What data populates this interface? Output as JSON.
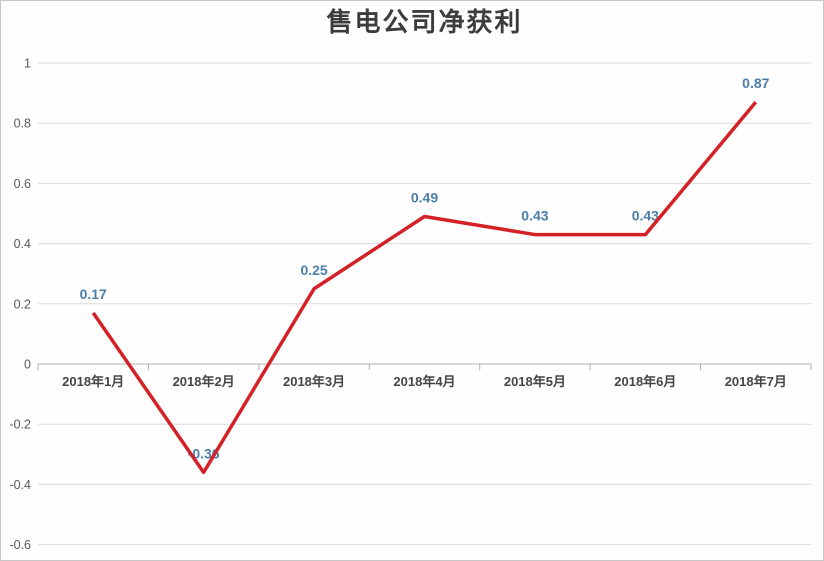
{
  "page": {
    "background": "#fefefe",
    "frame_border": "#c6c6c6"
  },
  "chart_data": {
    "type": "line",
    "title": "售电公司净获利",
    "categories": [
      "2018年1月",
      "2018年2月",
      "2018年3月",
      "2018年4月",
      "2018年5月",
      "2018年6月",
      "2018年7月"
    ],
    "values": [
      0.17,
      -0.36,
      0.25,
      0.49,
      0.43,
      0.43,
      0.87
    ],
    "data_labels": [
      "0.17",
      "-0.36",
      "0.25",
      "0.49",
      "0.43",
      "0.43",
      "0.87"
    ],
    "xlabel": "",
    "ylabel": "",
    "ylim": [
      -0.6,
      1
    ],
    "ytick_step": 0.2,
    "ytick_labels": [
      "1",
      "0.8",
      "0.6",
      "0.4",
      "0.2",
      "0",
      "-0.2",
      "-0.4",
      "-0.6"
    ],
    "grid": true,
    "legend": false,
    "legend_position": "none",
    "colors": {
      "line": "#d42127",
      "data_label": "#4b7daa",
      "grid": "#dcdcdc",
      "zero_axis": "#b0b0b0",
      "ytick_label": "#595959",
      "xtick_label": "#454545",
      "title": "#3c3c3c"
    }
  }
}
